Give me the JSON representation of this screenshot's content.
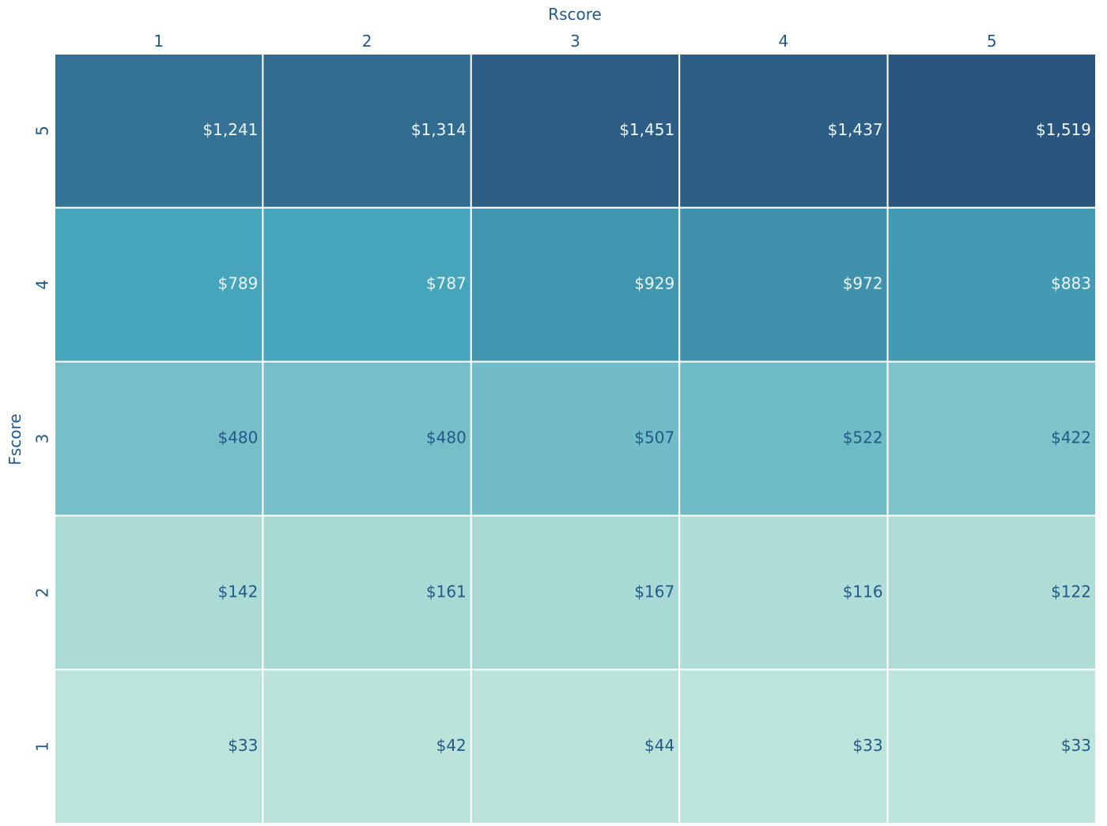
{
  "chart_data": {
    "type": "heatmap",
    "title": "",
    "xlabel": "Rscore",
    "ylabel": "Fscore",
    "x_categories": [
      "1",
      "2",
      "3",
      "4",
      "5"
    ],
    "y_categories": [
      "5",
      "4",
      "3",
      "2",
      "1"
    ],
    "values": [
      [
        1241,
        1314,
        1451,
        1437,
        1519
      ],
      [
        789,
        787,
        929,
        972,
        883
      ],
      [
        480,
        480,
        507,
        522,
        422
      ],
      [
        142,
        161,
        167,
        116,
        122
      ],
      [
        33,
        42,
        44,
        33,
        33
      ]
    ],
    "cell_labels": [
      [
        "$1,241",
        "$1,314",
        "$1,451",
        "$1,437",
        "$1,519"
      ],
      [
        "$789",
        "$787",
        "$929",
        "$972",
        "$883"
      ],
      [
        "$480",
        "$480",
        "$507",
        "$522",
        "$422"
      ],
      [
        "$142",
        "$161",
        "$167",
        "$116",
        "$122"
      ],
      [
        "$33",
        "$42",
        "$44",
        "$33",
        "$33"
      ]
    ],
    "x_axis_position": "top",
    "color_scale": {
      "low": "#bde4da",
      "mid": "#47a6bc",
      "high": "#2a557f"
    },
    "label_color_light": "#eef6fa",
    "label_color_dark": "#1f5a8a",
    "axis_text_color": "#1f5a8a",
    "grid": false,
    "legend": "none"
  }
}
